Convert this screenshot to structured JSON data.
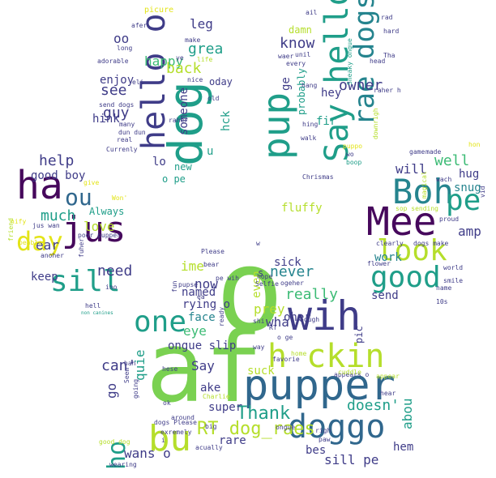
{
  "palette": {
    "dark_purple": "#46085c",
    "purple": "#3f3c88",
    "blue": "#30678d",
    "teal_blue": "#25848e",
    "teal": "#1f9e89",
    "green": "#3cbb75",
    "light_green": "#7ad151",
    "yellow_green": "#b5de2b",
    "yellow": "#e3e418"
  },
  "words": [
    {
      "text": "af",
      "color": "light_green"
    },
    {
      "text": "o",
      "color": "light_green"
    },
    {
      "text": "pupper",
      "color": "blue"
    },
    {
      "text": "dog",
      "color": "teal"
    },
    {
      "text": "Mee",
      "color": "dark_purple"
    },
    {
      "text": "ha",
      "color": "dark_purple"
    },
    {
      "text": "bu",
      "color": "yellow_green"
    },
    {
      "text": "wih",
      "color": "purple"
    },
    {
      "text": "Boh",
      "color": "teal_blue"
    },
    {
      "text": "jus",
      "color": "dark_purple"
    },
    {
      "text": "hello o",
      "color": "purple"
    },
    {
      "text": "pup",
      "color": "teal"
    },
    {
      "text": "Say hello",
      "color": "teal"
    },
    {
      "text": "h ckin",
      "color": "yellow_green"
    },
    {
      "text": "doggo",
      "color": "blue"
    },
    {
      "text": "rae dogs",
      "color": "teal_blue"
    },
    {
      "text": "look",
      "color": "yellow_green"
    },
    {
      "text": "good",
      "color": "teal"
    },
    {
      "text": "one",
      "color": "teal"
    },
    {
      "text": "pe",
      "color": "teal"
    },
    {
      "text": "sill",
      "color": "teal"
    },
    {
      "text": "day",
      "color": "yellow"
    },
    {
      "text": "ou",
      "color": "blue"
    },
    {
      "text": "ho",
      "color": "teal"
    },
    {
      "text": "Thank",
      "color": "teal"
    },
    {
      "text": "RT dog_raes",
      "color": "yellow_green"
    },
    {
      "text": "doesn'",
      "color": "teal"
    },
    {
      "text": "never",
      "color": "teal_blue"
    },
    {
      "text": "really",
      "color": "green"
    },
    {
      "text": "know",
      "color": "purple"
    },
    {
      "text": "owner",
      "color": "purple"
    },
    {
      "text": "grea",
      "color": "teal"
    },
    {
      "text": "happy",
      "color": "green"
    },
    {
      "text": "back",
      "color": "yellow_green"
    },
    {
      "text": "see",
      "color": "purple"
    },
    {
      "text": "guy",
      "color": "purple"
    },
    {
      "text": "leg",
      "color": "purple"
    },
    {
      "text": "oo",
      "color": "purple"
    },
    {
      "text": "help",
      "color": "purple"
    },
    {
      "text": "good boy",
      "color": "purple"
    },
    {
      "text": "much",
      "color": "teal"
    },
    {
      "text": "love",
      "color": "yellow_green"
    },
    {
      "text": "Always",
      "color": "teal"
    },
    {
      "text": "need",
      "color": "purple"
    },
    {
      "text": "ear",
      "color": "purple"
    },
    {
      "text": "keep",
      "color": "purple"
    },
    {
      "text": "will",
      "color": "purple"
    },
    {
      "text": "well",
      "color": "green"
    },
    {
      "text": "hug",
      "color": "purple"
    },
    {
      "text": "snug",
      "color": "teal_blue"
    },
    {
      "text": "amp",
      "color": "purple"
    },
    {
      "text": "work",
      "color": "teal_blue"
    },
    {
      "text": "send",
      "color": "purple"
    },
    {
      "text": "can'",
      "color": "purple"
    },
    {
      "text": "now",
      "color": "purple"
    },
    {
      "text": "ime",
      "color": "yellow_green"
    },
    {
      "text": "eye",
      "color": "green"
    },
    {
      "text": "wha",
      "color": "purple"
    },
    {
      "text": "Say",
      "color": "purple"
    },
    {
      "text": "sick",
      "color": "purple"
    },
    {
      "text": "prey",
      "color": "yellow_green"
    },
    {
      "text": "even",
      "color": "yellow_green"
    },
    {
      "text": "suck",
      "color": "yellow_green"
    },
    {
      "text": "wans o",
      "color": "purple"
    },
    {
      "text": "rare",
      "color": "purple"
    },
    {
      "text": "super",
      "color": "purple"
    },
    {
      "text": "sill pe",
      "color": "purple"
    },
    {
      "text": "bes",
      "color": "purple"
    },
    {
      "text": "hem",
      "color": "purple"
    },
    {
      "text": "abou",
      "color": "teal"
    },
    {
      "text": "quie",
      "color": "teal"
    },
    {
      "text": "go",
      "color": "purple"
    },
    {
      "text": "ake",
      "color": "purple"
    },
    {
      "text": "face",
      "color": "teal_blue"
    },
    {
      "text": "named",
      "color": "purple"
    },
    {
      "text": "rying o",
      "color": "purple"
    },
    {
      "text": "ongue slip",
      "color": "purple"
    },
    {
      "text": "pic",
      "color": "purple"
    },
    {
      "text": "oher",
      "color": "purple"
    },
    {
      "text": "s",
      "color": "purple"
    },
    {
      "text": "someone",
      "color": "purple"
    },
    {
      "text": "hck",
      "color": "teal"
    },
    {
      "text": "lo",
      "color": "purple"
    },
    {
      "text": "hink",
      "color": "purple"
    },
    {
      "text": "enjoy",
      "color": "purple"
    },
    {
      "text": "oday",
      "color": "purple"
    },
    {
      "text": "fluffy",
      "color": "yellow_green"
    },
    {
      "text": "fir",
      "color": "teal"
    },
    {
      "text": "probably",
      "color": "teal"
    },
    {
      "text": "hey",
      "color": "purple"
    },
    {
      "text": "ge",
      "color": "purple"
    },
    {
      "text": "damn",
      "color": "yellow_green"
    },
    {
      "text": "new",
      "color": "teal"
    },
    {
      "text": "o pe",
      "color": "teal"
    },
    {
      "text": "u",
      "color": "teal"
    },
    {
      "text": "picure",
      "color": "yellow"
    },
    {
      "text": "afer",
      "color": "purple"
    },
    {
      "text": "long",
      "color": "purple"
    },
    {
      "text": "make",
      "color": "purple"
    },
    {
      "text": "adorable",
      "color": "purple"
    },
    {
      "text": "ye",
      "color": "purple"
    },
    {
      "text": "life",
      "color": "yellow_green"
    },
    {
      "text": "nice",
      "color": "purple"
    },
    {
      "text": "send dogs",
      "color": "purple"
    },
    {
      "text": "many",
      "color": "purple"
    },
    {
      "text": "dun dun",
      "color": "purple"
    },
    {
      "text": "real",
      "color": "purple"
    },
    {
      "text": "old",
      "color": "purple"
    },
    {
      "text": "raher",
      "color": "purple"
    },
    {
      "text": "Currenly",
      "color": "purple"
    },
    {
      "text": "eli",
      "color": "purple"
    },
    {
      "text": "ail",
      "color": "purple"
    },
    {
      "text": "Sneaky ongue",
      "color": "teal"
    },
    {
      "text": "rad",
      "color": "purple"
    },
    {
      "text": "hard",
      "color": "purple"
    },
    {
      "text": "waer",
      "color": "purple"
    },
    {
      "text": "unil",
      "color": "purple"
    },
    {
      "text": "every",
      "color": "purple"
    },
    {
      "text": "Tha",
      "color": "purple"
    },
    {
      "text": "head",
      "color": "purple"
    },
    {
      "text": "raher h",
      "color": "purple"
    },
    {
      "text": "hang",
      "color": "purple"
    },
    {
      "text": "hing",
      "color": "purple"
    },
    {
      "text": "walk",
      "color": "purple"
    },
    {
      "text": "puppo",
      "color": "yellow"
    },
    {
      "text": "wo",
      "color": "purple"
    },
    {
      "text": "boop",
      "color": "teal"
    },
    {
      "text": "Chrismas",
      "color": "purple"
    },
    {
      "text": "downrigh",
      "color": "yellow_green"
    },
    {
      "text": "hon",
      "color": "yellow"
    },
    {
      "text": "game",
      "color": "purple"
    },
    {
      "text": "made",
      "color": "purple"
    },
    {
      "text": "wach",
      "color": "purple"
    },
    {
      "text": "vid",
      "color": "purple"
    },
    {
      "text": "magical",
      "color": "yellow_green"
    },
    {
      "text": "sop sending",
      "color": "yellow_green"
    },
    {
      "text": "proud",
      "color": "purple"
    },
    {
      "text": "clearly",
      "color": "purple"
    },
    {
      "text": "dogs make",
      "color": "purple"
    },
    {
      "text": "flower",
      "color": "purple"
    },
    {
      "text": "world",
      "color": "purple"
    },
    {
      "text": "smile",
      "color": "purple"
    },
    {
      "text": "name",
      "color": "purple"
    },
    {
      "text": "10s",
      "color": "purple"
    },
    {
      "text": "give",
      "color": "yellow"
    },
    {
      "text": "Won'",
      "color": "yellow"
    },
    {
      "text": "nify",
      "color": "yellow"
    },
    {
      "text": "friend",
      "color": "yellow_green"
    },
    {
      "text": "jus wan",
      "color": "purple"
    },
    {
      "text": "poor pupper",
      "color": "purple"
    },
    {
      "text": "peable",
      "color": "yellow"
    },
    {
      "text": "fuher",
      "color": "purple"
    },
    {
      "text": "anoher",
      "color": "purple"
    },
    {
      "text": "ino",
      "color": "purple"
    },
    {
      "text": "hell",
      "color": "purple"
    },
    {
      "text": "non canines",
      "color": "teal"
    },
    {
      "text": "Please",
      "color": "purple"
    },
    {
      "text": "bear",
      "color": "purple"
    },
    {
      "text": "pe wih",
      "color": "purple"
    },
    {
      "text": "w",
      "color": "purple"
    },
    {
      "text": "hope",
      "color": "purple"
    },
    {
      "text": "Selfie",
      "color": "purple"
    },
    {
      "text": "ogeher",
      "color": "purple"
    },
    {
      "text": "fun",
      "color": "purple"
    },
    {
      "text": "pupse",
      "color": "purple"
    },
    {
      "text": "ea",
      "color": "purple"
    },
    {
      "text": "shi",
      "color": "purple"
    },
    {
      "text": "RT",
      "color": "purple"
    },
    {
      "text": "o ge",
      "color": "purple"
    },
    {
      "text": "way",
      "color": "purple"
    },
    {
      "text": "ready",
      "color": "purple"
    },
    {
      "text": "hough",
      "color": "purple"
    },
    {
      "text": "home",
      "color": "yellow_green"
    },
    {
      "text": "favorie",
      "color": "purple"
    },
    {
      "text": "appears o",
      "color": "purple"
    },
    {
      "text": "cuddle",
      "color": "yellow_green"
    },
    {
      "text": "appear",
      "color": "yellow_green"
    },
    {
      "text": "hear",
      "color": "purple"
    },
    {
      "text": "han",
      "color": "purple"
    },
    {
      "text": "hese",
      "color": "purple"
    },
    {
      "text": "Seem",
      "color": "purple"
    },
    {
      "text": "going",
      "color": "purple"
    },
    {
      "text": "Charlie",
      "color": "yellow_green"
    },
    {
      "text": "ok",
      "color": "purple"
    },
    {
      "text": "around",
      "color": "purple"
    },
    {
      "text": "big",
      "color": "purple"
    },
    {
      "text": "dogs Please",
      "color": "purple"
    },
    {
      "text": "exremely",
      "color": "purple"
    },
    {
      "text": "i",
      "color": "purple"
    },
    {
      "text": "ongue",
      "color": "purple"
    },
    {
      "text": "righ",
      "color": "purple"
    },
    {
      "text": "paw",
      "color": "purple"
    },
    {
      "text": "good dog",
      "color": "yellow_green"
    },
    {
      "text": "acually",
      "color": "purple"
    },
    {
      "text": "wearing",
      "color": "purple"
    }
  ]
}
